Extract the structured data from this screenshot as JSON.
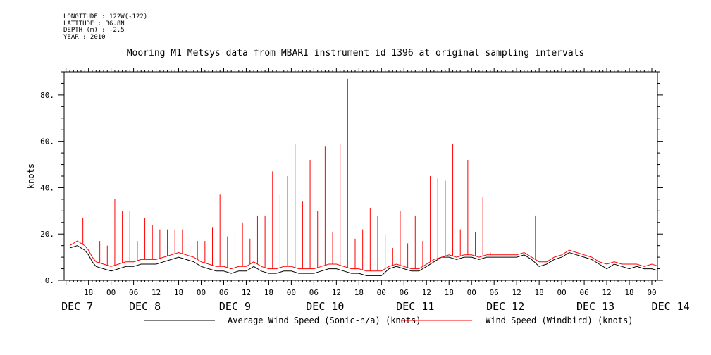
{
  "header": {
    "meta": [
      "LONGITUDE : 122W(-122)",
      "LATITUDE : 36.8N",
      "DEPTH (m) : -2.5",
      "YEAR : 2010"
    ],
    "title": "Mooring M1 Metsys data from MBARI instrument id 1396 at original sampling intervals"
  },
  "chart_data": {
    "type": "line",
    "title": "Mooring M1 Metsys data from MBARI instrument id 1396 at original sampling intervals",
    "ylabel": "knots",
    "xlabel": "",
    "ylim": [
      0,
      90
    ],
    "xlim_hours_from_dec7_00": [
      -12.5,
      145.5
    ],
    "y_ticks": [
      0,
      20,
      40,
      60,
      80
    ],
    "y_tick_labels": [
      "0.",
      "20.",
      "40.",
      "60.",
      "80."
    ],
    "hour_ticks": [
      {
        "h": -6,
        "label": "18"
      },
      {
        "h": 0,
        "label": "00"
      },
      {
        "h": 6,
        "label": "06"
      },
      {
        "h": 12,
        "label": "12"
      },
      {
        "h": 18,
        "label": "18"
      },
      {
        "h": 24,
        "label": "00"
      },
      {
        "h": 30,
        "label": "06"
      },
      {
        "h": 36,
        "label": "12"
      },
      {
        "h": 42,
        "label": "18"
      },
      {
        "h": 48,
        "label": "00"
      },
      {
        "h": 54,
        "label": "06"
      },
      {
        "h": 60,
        "label": "12"
      },
      {
        "h": 66,
        "label": "18"
      },
      {
        "h": 72,
        "label": "00"
      },
      {
        "h": 78,
        "label": "06"
      },
      {
        "h": 84,
        "label": "12"
      },
      {
        "h": 90,
        "label": "18"
      },
      {
        "h": 96,
        "label": "00"
      },
      {
        "h": 102,
        "label": "06"
      },
      {
        "h": 108,
        "label": "12"
      },
      {
        "h": 114,
        "label": "18"
      },
      {
        "h": 120,
        "label": "00"
      },
      {
        "h": 126,
        "label": "06"
      },
      {
        "h": 132,
        "label": "12"
      },
      {
        "h": 138,
        "label": "18"
      },
      {
        "h": 144,
        "label": "00"
      },
      {
        "h": 150,
        "label": "06"
      },
      {
        "h": 156,
        "label": "12"
      }
    ],
    "day_labels": [
      {
        "h": -9,
        "label": "DEC  7"
      },
      {
        "h": 9,
        "label": "DEC  8"
      },
      {
        "h": 33,
        "label": "DEC  9"
      },
      {
        "h": 57,
        "label": "DEC 10"
      },
      {
        "h": 81,
        "label": "DEC 11"
      },
      {
        "h": 105,
        "label": "DEC 12"
      },
      {
        "h": 129,
        "label": "DEC 13"
      },
      {
        "h": 149,
        "label": "DEC 14"
      }
    ],
    "series": [
      {
        "name": "Average Wind Speed (Sonic-n/a) (knots)",
        "color": "#000000",
        "x_hours_from_dec7_00": [
          -11,
          -9,
          -7,
          -6,
          -5,
          -4,
          -2,
          0,
          2,
          4,
          6,
          8,
          10,
          12,
          14,
          16,
          18,
          20,
          22,
          24,
          26,
          28,
          30,
          32,
          34,
          36,
          38,
          40,
          42,
          44,
          46,
          48,
          50,
          52,
          54,
          56,
          58,
          60,
          62,
          64,
          66,
          68,
          70,
          72,
          74,
          76,
          78,
          80,
          82,
          84,
          86,
          88,
          90,
          92,
          94,
          96,
          98,
          100,
          102,
          104,
          106,
          108,
          110,
          112,
          114,
          116,
          118,
          120,
          122,
          124,
          126,
          128,
          130,
          132,
          134,
          136,
          138,
          140,
          142,
          144,
          146,
          148,
          150,
          152,
          154,
          156,
          158,
          160
        ],
        "values": [
          14,
          15,
          13,
          11,
          8,
          6,
          5,
          4,
          5,
          6,
          6,
          7,
          7,
          7,
          8,
          9,
          10,
          9,
          8,
          6,
          5,
          4,
          4,
          3,
          4,
          4,
          6,
          4,
          3,
          3,
          4,
          4,
          3,
          3,
          3,
          4,
          5,
          5,
          4,
          3,
          3,
          2,
          2,
          2,
          5,
          6,
          5,
          4,
          4,
          6,
          8,
          10,
          10,
          9,
          10,
          10,
          9,
          10,
          10,
          10,
          10,
          10,
          11,
          9,
          6,
          7,
          9,
          10,
          12,
          11,
          10,
          9,
          7,
          5,
          7,
          6,
          5,
          6,
          5,
          5,
          4,
          4,
          5,
          4,
          3,
          4,
          3,
          4
        ]
      },
      {
        "name": "Wind Speed (Windbird) (knots)",
        "color": "#ff0000",
        "x_hours_from_dec7_00": [
          -11,
          -9,
          -7,
          -6,
          -5,
          -4,
          -2,
          0,
          2,
          4,
          6,
          8,
          10,
          12,
          14,
          16,
          18,
          20,
          22,
          24,
          26,
          28,
          30,
          32,
          34,
          36,
          38,
          40,
          42,
          44,
          46,
          48,
          50,
          52,
          54,
          56,
          58,
          60,
          62,
          64,
          66,
          68,
          70,
          72,
          74,
          76,
          78,
          80,
          82,
          84,
          86,
          88,
          90,
          92,
          94,
          96,
          98,
          100,
          102,
          104,
          106,
          108,
          110,
          112,
          114,
          116,
          118,
          120,
          122,
          124,
          126,
          128,
          130,
          132,
          134,
          136,
          138,
          140,
          142,
          144,
          146,
          148,
          150,
          152,
          154,
          156,
          158,
          160
        ],
        "values": [
          15,
          17,
          15,
          13,
          10,
          8,
          7,
          6,
          7,
          8,
          8,
          9,
          9,
          9,
          10,
          11,
          12,
          11,
          10,
          8,
          7,
          6,
          6,
          5,
          6,
          6,
          8,
          6,
          5,
          5,
          6,
          6,
          5,
          5,
          5,
          6,
          7,
          7,
          6,
          5,
          5,
          4,
          4,
          4,
          6,
          7,
          6,
          5,
          5,
          7,
          9,
          10,
          11,
          10,
          11,
          11,
          10,
          11,
          11,
          11,
          11,
          11,
          12,
          10,
          8,
          8,
          10,
          11,
          13,
          12,
          11,
          10,
          8,
          7,
          8,
          7,
          7,
          7,
          6,
          7,
          6,
          6,
          6,
          6,
          5,
          7,
          5,
          6
        ]
      }
    ],
    "red_spikes": [
      {
        "x": -7.5,
        "y": 27
      },
      {
        "x": -3,
        "y": 17
      },
      {
        "x": -1,
        "y": 15
      },
      {
        "x": 1,
        "y": 35
      },
      {
        "x": 3,
        "y": 30
      },
      {
        "x": 5,
        "y": 30
      },
      {
        "x": 7,
        "y": 17
      },
      {
        "x": 9,
        "y": 27
      },
      {
        "x": 11,
        "y": 24
      },
      {
        "x": 13,
        "y": 22
      },
      {
        "x": 15,
        "y": 22
      },
      {
        "x": 17,
        "y": 22
      },
      {
        "x": 19,
        "y": 22
      },
      {
        "x": 21,
        "y": 17
      },
      {
        "x": 23,
        "y": 17
      },
      {
        "x": 25,
        "y": 17
      },
      {
        "x": 27,
        "y": 23
      },
      {
        "x": 29,
        "y": 37
      },
      {
        "x": 31,
        "y": 19
      },
      {
        "x": 33,
        "y": 21
      },
      {
        "x": 35,
        "y": 25
      },
      {
        "x": 37,
        "y": 18
      },
      {
        "x": 39,
        "y": 28
      },
      {
        "x": 41,
        "y": 28
      },
      {
        "x": 43,
        "y": 47
      },
      {
        "x": 45,
        "y": 37
      },
      {
        "x": 47,
        "y": 45
      },
      {
        "x": 49,
        "y": 59
      },
      {
        "x": 51,
        "y": 34
      },
      {
        "x": 53,
        "y": 52
      },
      {
        "x": 55,
        "y": 30
      },
      {
        "x": 57,
        "y": 58
      },
      {
        "x": 59,
        "y": 21
      },
      {
        "x": 61,
        "y": 59
      },
      {
        "x": 63,
        "y": 87
      },
      {
        "x": 65,
        "y": 18
      },
      {
        "x": 67,
        "y": 22
      },
      {
        "x": 69,
        "y": 31
      },
      {
        "x": 71,
        "y": 28
      },
      {
        "x": 73,
        "y": 20
      },
      {
        "x": 75,
        "y": 14
      },
      {
        "x": 77,
        "y": 30
      },
      {
        "x": 79,
        "y": 16
      },
      {
        "x": 81,
        "y": 28
      },
      {
        "x": 83,
        "y": 17
      },
      {
        "x": 85,
        "y": 45
      },
      {
        "x": 87,
        "y": 44
      },
      {
        "x": 89,
        "y": 43
      },
      {
        "x": 91,
        "y": 59
      },
      {
        "x": 93,
        "y": 22
      },
      {
        "x": 95,
        "y": 52
      },
      {
        "x": 97,
        "y": 21
      },
      {
        "x": 99,
        "y": 36
      },
      {
        "x": 101,
        "y": 12
      },
      {
        "x": 113,
        "y": 28
      }
    ]
  },
  "legend": {
    "black_label": "Average Wind Speed (Sonic-n/a) (knots)",
    "red_label": "Wind Speed (Windbird) (knots)"
  }
}
